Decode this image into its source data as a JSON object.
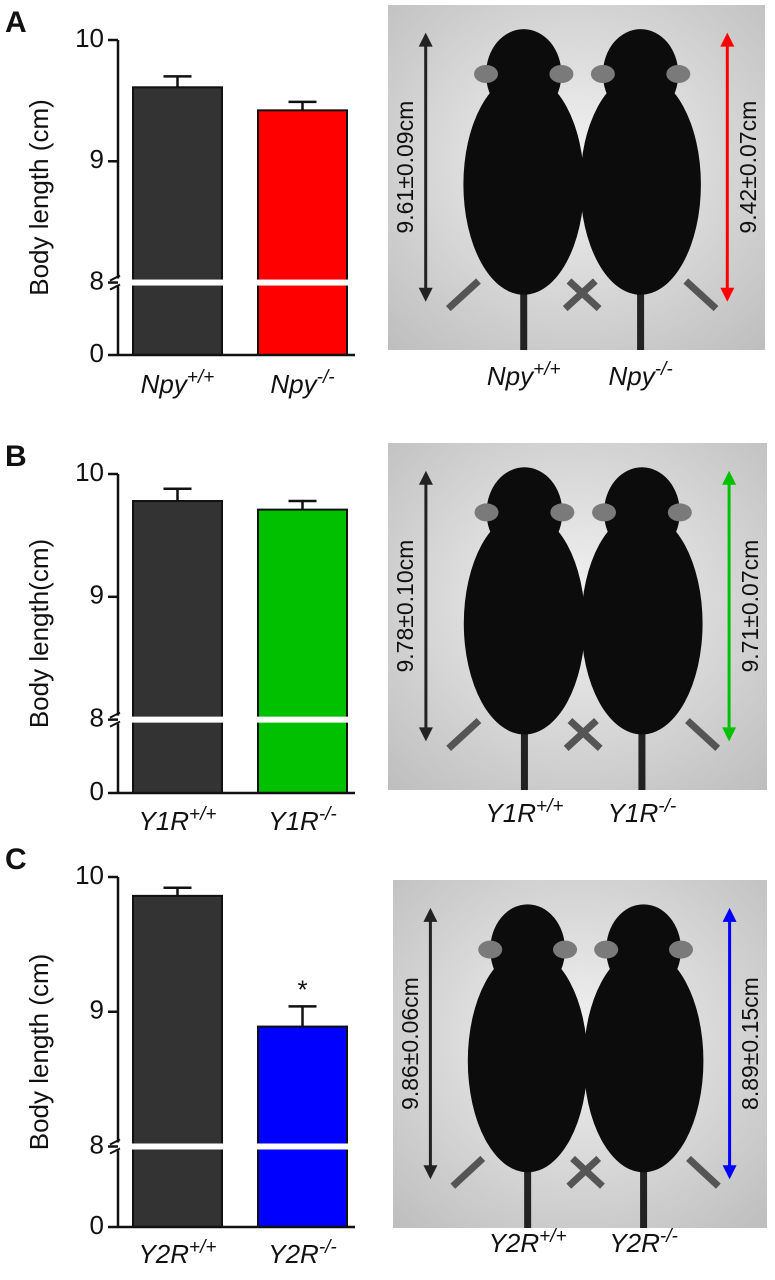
{
  "chart_data": [
    {
      "type": "bar",
      "panel_label": "A",
      "ylabel": "Body length (cm)",
      "categories": [
        "Npy+/+",
        "Npy-/-"
      ],
      "values": [
        9.61,
        9.42
      ],
      "errors": [
        0.09,
        0.07
      ],
      "colors": [
        "#333333",
        "#ff0000"
      ],
      "ylim": [
        0,
        10
      ],
      "yticks": [
        0,
        8,
        9,
        10
      ],
      "y_break": 8,
      "photo_labels": [
        "9.61±0.09cm",
        "9.42±0.07cm"
      ]
    },
    {
      "type": "bar",
      "panel_label": "B",
      "ylabel": "Body length(cm)",
      "categories": [
        "Y1R+/+",
        "Y1R-/-"
      ],
      "values": [
        9.78,
        9.71
      ],
      "errors": [
        0.1,
        0.07
      ],
      "colors": [
        "#333333",
        "#00c000"
      ],
      "ylim": [
        0,
        10
      ],
      "yticks": [
        0,
        8,
        9,
        10
      ],
      "y_break": 8,
      "photo_labels": [
        "9.78±0.10cm",
        "9.71±0.07cm"
      ]
    },
    {
      "type": "bar",
      "panel_label": "C",
      "ylabel": "Body length (cm)",
      "categories": [
        "Y2R+/+",
        "Y2R-/-"
      ],
      "values": [
        9.86,
        8.89
      ],
      "errors": [
        0.06,
        0.15
      ],
      "colors": [
        "#333333",
        "#0000ff"
      ],
      "ylim": [
        0,
        10
      ],
      "yticks": [
        0,
        8,
        9,
        10
      ],
      "y_break": 8,
      "photo_labels": [
        "9.86±0.06cm",
        "8.89±0.15cm"
      ],
      "annotations": [
        {
          "text": "*",
          "category": "Y2R-/-"
        }
      ]
    }
  ]
}
